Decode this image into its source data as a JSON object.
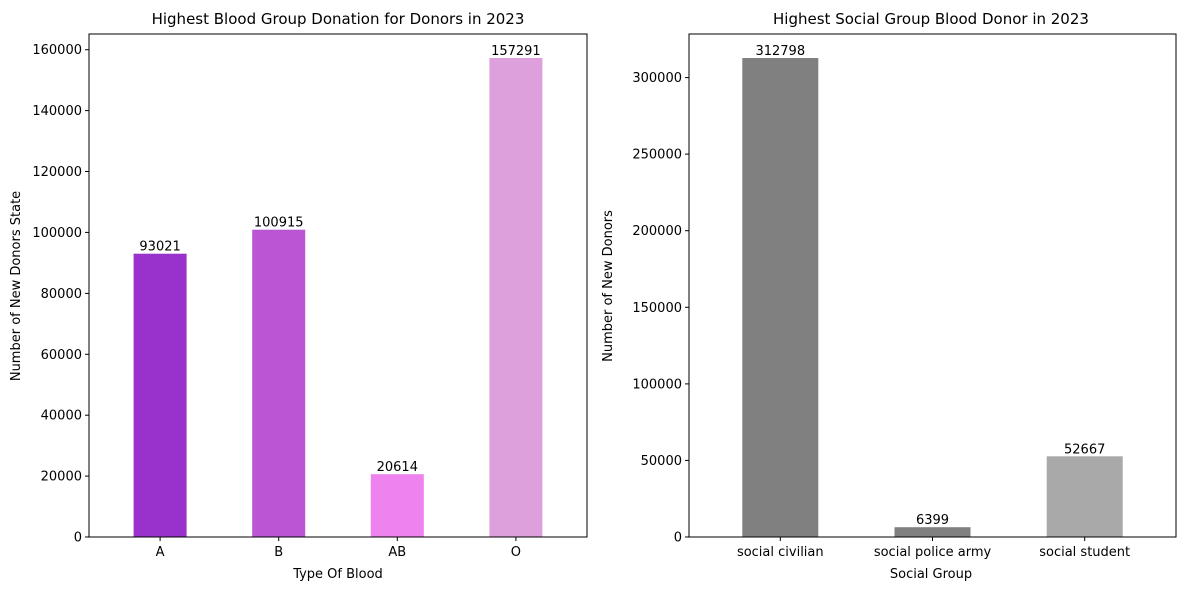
{
  "chart_data": [
    {
      "type": "bar",
      "title": "Highest Blood Group Donation for Donors in 2023",
      "xlabel": "Type Of Blood",
      "ylabel": "Number of New Donors State",
      "categories": [
        "A",
        "B",
        "AB",
        "O"
      ],
      "values": [
        93021,
        100915,
        20614,
        157291
      ],
      "data_labels": [
        "93021",
        "100915",
        "20614",
        "157291"
      ],
      "colors": [
        "#9932CC",
        "#BA55D3",
        "#EE82EE",
        "#DDA0DD"
      ],
      "ylim": [
        0,
        165155
      ],
      "yticks": [
        0,
        20000,
        40000,
        60000,
        80000,
        100000,
        120000,
        140000,
        160000
      ],
      "grid": false,
      "legend": "none"
    },
    {
      "type": "bar",
      "title": "Highest Social Group Blood Donor in 2023",
      "xlabel": "Social Group",
      "ylabel": "Number of New Donors",
      "categories": [
        "social civilian",
        "social police army",
        "social student"
      ],
      "values": [
        312798,
        6399,
        52667
      ],
      "data_labels": [
        "312798",
        "6399",
        "52667"
      ],
      "colors": [
        "#808080",
        "#808080",
        "#A9A9A9"
      ],
      "ylim": [
        0,
        328438
      ],
      "yticks": [
        0,
        50000,
        100000,
        150000,
        200000,
        250000,
        300000
      ],
      "grid": false,
      "legend": "none"
    }
  ]
}
